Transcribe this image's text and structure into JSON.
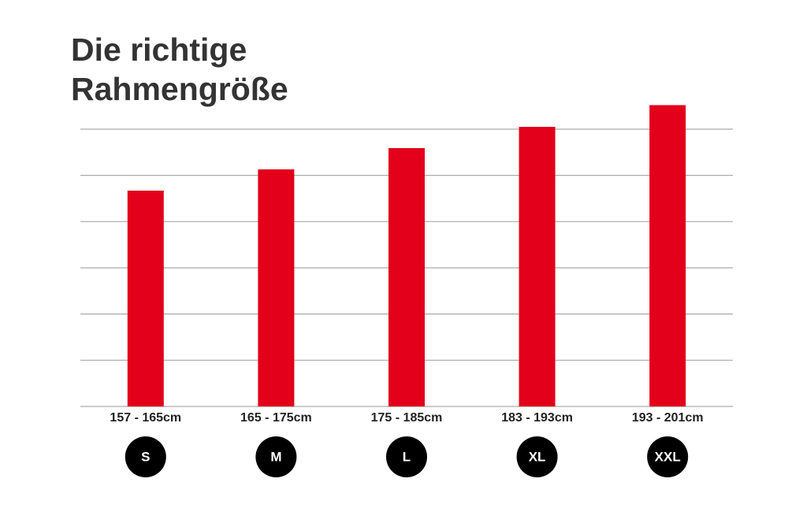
{
  "chart_data": {
    "type": "bar",
    "title": "Die richtige Rahmengröße",
    "categories": [
      "157 - 165cm",
      "165 - 175cm",
      "175 - 185cm",
      "183 - 193cm",
      "193 - 201cm"
    ],
    "sizes": [
      "S",
      "M",
      "L",
      "XL",
      "XXL"
    ],
    "values": [
      4.67,
      5.13,
      5.59,
      6.05,
      6.52
    ],
    "color": "#e2001a",
    "ylim": [
      0,
      7
    ],
    "yticks": [
      0,
      1,
      2,
      3,
      4,
      5,
      6
    ],
    "grid": true
  }
}
